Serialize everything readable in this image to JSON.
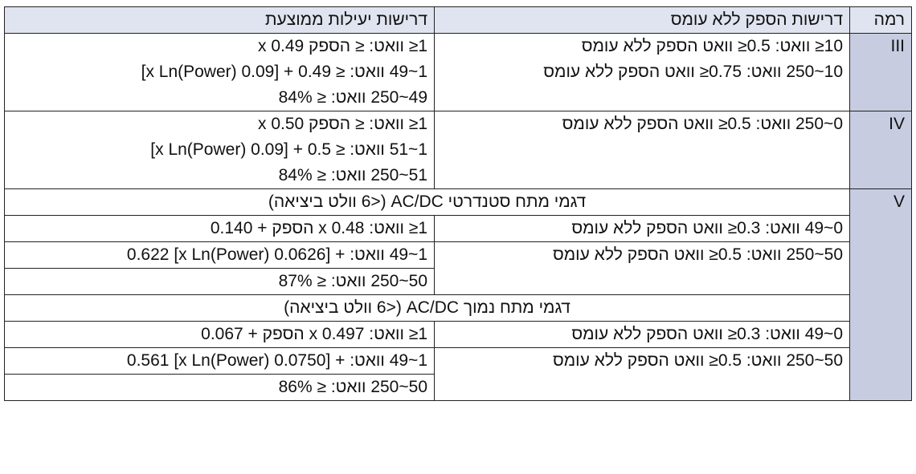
{
  "table": {
    "header": [
      "רמה",
      "דרישות הספק ללא עומס",
      "דרישות יעילות ממוצעת"
    ],
    "levels": [
      {
        "level": "III",
        "no_load": [
          "10≤ וואט: 0.5≤ וואט הספק ללא עומס",
          "10~250 וואט: 0.75≤ וואט הספק ללא עומס"
        ],
        "efficiency": [
          "1≤ וואט: ≤ הספק x 0.49",
          "1~49 וואט: ≤ 0.49 + [0.09 x Ln(Power)]",
          "49~250 וואט: ≤ 84%"
        ]
      },
      {
        "level": "IV",
        "no_load": [
          "0~250 וואט: 0.5≤ וואט הספק ללא עומס"
        ],
        "efficiency": [
          "1≤ וואט: ≤ הספק x 0.50",
          "1~51 וואט: ≤ 0.5 + [0.09 x Ln(Power)]",
          "51~250 וואט: ≤ 84%"
        ]
      },
      {
        "level": "V",
        "groups": [
          {
            "title": "דגמי מתח סטנדרטי AC/DC (<6 וולט ביציאה)",
            "rows": [
              {
                "no_load": "0~49 וואט: 0.3≤ וואט הספק ללא עומס",
                "efficiency": [
                  "1≤ וואט: 0.48 x הספק + 0.140"
                ]
              },
              {
                "no_load": "50~250 וואט: 0.5≤ וואט הספק ללא עומס",
                "efficiency": [
                  "1~49 וואט: + [0.0626 x Ln(Power)] 0.622",
                  "50~250 וואט: ≤ 87%"
                ]
              }
            ]
          },
          {
            "title": "דגמי מתח נמוך AC/DC (<6 וולט ביציאה)",
            "rows": [
              {
                "no_load": "0~49 וואט: 0.3≤ וואט הספק ללא עומס",
                "efficiency": [
                  "1≤ וואט: 0.497 x הספק + 0.067"
                ]
              },
              {
                "no_load": "50~250 וואט: 0.5≤ וואט הספק ללא עומס",
                "efficiency": [
                  "1~49 וואט: + [0.0750 x Ln(Power)] 0.561",
                  "50~250 וואט: ≤ 86%"
                ]
              }
            ]
          }
        ]
      }
    ]
  }
}
